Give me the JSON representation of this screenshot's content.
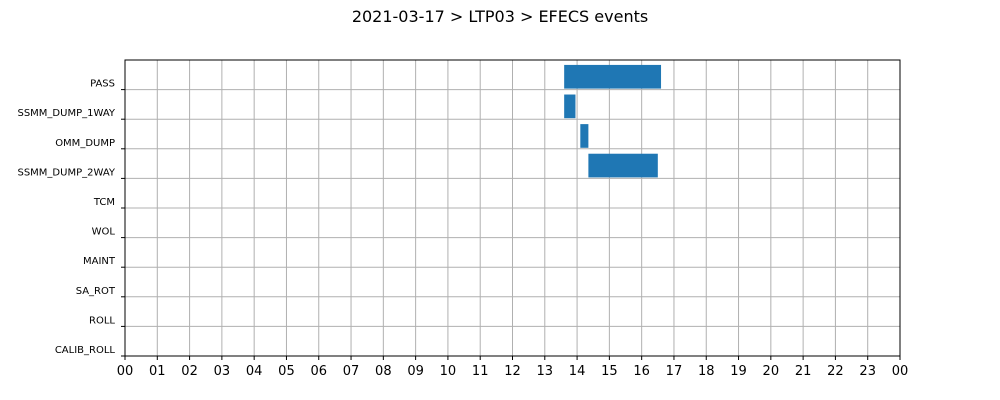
{
  "title": "2021-03-17 > LTP03 > EFECS events",
  "colors": {
    "bar": "#1f77b4",
    "grid": "#b0b0b0",
    "axis": "#000000"
  },
  "chart_data": {
    "type": "bar",
    "orientation": "horizontal-timeline",
    "title": "2021-03-17 > LTP03 > EFECS events",
    "xlabel": "",
    "ylabel": "",
    "x_unit": "hour of day",
    "xlim": [
      0,
      24
    ],
    "x_ticks": [
      "00",
      "01",
      "02",
      "03",
      "04",
      "05",
      "06",
      "07",
      "08",
      "09",
      "10",
      "11",
      "12",
      "13",
      "14",
      "15",
      "16",
      "17",
      "18",
      "19",
      "20",
      "21",
      "22",
      "23",
      "00"
    ],
    "categories": [
      "PASS",
      "SSMM_DUMP_1WAY",
      "OMM_DUMP",
      "SSMM_DUMP_2WAY",
      "TCM",
      "WOL",
      "MAINT",
      "SA_ROT",
      "ROLL",
      "CALIB_ROLL"
    ],
    "grid": true,
    "events": [
      {
        "category": "PASS",
        "start": 13.6,
        "end": 16.6
      },
      {
        "category": "SSMM_DUMP_1WAY",
        "start": 13.6,
        "end": 13.95
      },
      {
        "category": "OMM_DUMP",
        "start": 14.1,
        "end": 14.35
      },
      {
        "category": "SSMM_DUMP_2WAY",
        "start": 14.35,
        "end": 16.5
      }
    ]
  }
}
